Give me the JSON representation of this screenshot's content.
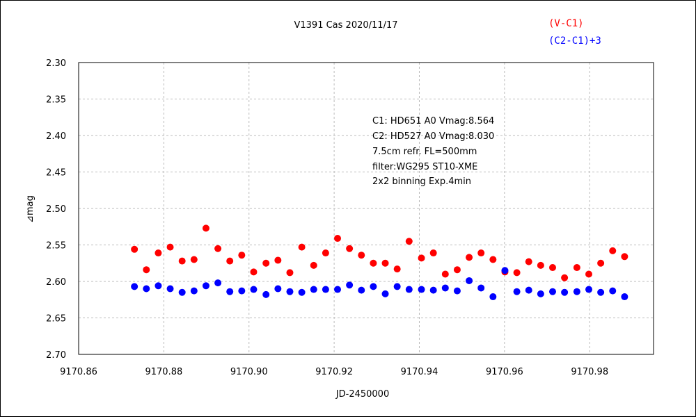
{
  "chart_data": {
    "type": "scatter",
    "title": "V1391 Cas   2020/11/17",
    "xlabel": "JD-2450000",
    "ylabel": "⊿mag",
    "xlim": [
      9170.86,
      9170.995
    ],
    "ylim": [
      2.3,
      2.7
    ],
    "y_inverted": true,
    "x_ticks": [
      "9170.86",
      "9170.88",
      "9170.90",
      "9170.92",
      "9170.94",
      "9170.96",
      "9170.98"
    ],
    "x_tick_values": [
      9170.86,
      9170.88,
      9170.9,
      9170.92,
      9170.94,
      9170.96,
      9170.98
    ],
    "y_ticks": [
      "2.30",
      "2.35",
      "2.40",
      "2.45",
      "2.50",
      "2.55",
      "2.60",
      "2.65",
      "2.70"
    ],
    "y_tick_values": [
      2.3,
      2.35,
      2.4,
      2.45,
      2.5,
      2.55,
      2.6,
      2.65,
      2.7
    ],
    "grid": true,
    "legend_position": "top-right",
    "annotations": [
      "C1: HD651 A0 Vmag:8.564",
      "C2: HD527 A0  Vmag:8.030",
      "7.5cm refr. FL=500mm",
      "filter:WG295  ST10-XME",
      "2x2 binning  Exp.4min"
    ],
    "series": [
      {
        "name": "(V-C1)",
        "color": "#ff0000",
        "x": [
          9170.8731,
          9170.8759,
          9170.8787,
          9170.8815,
          9170.8843,
          9170.8871,
          9170.8899,
          9170.8927,
          9170.8955,
          9170.8983,
          9170.9011,
          9170.904,
          9170.9068,
          9170.9096,
          9170.9124,
          9170.9152,
          9170.918,
          9170.9208,
          9170.9236,
          9170.9264,
          9170.9292,
          9170.932,
          9170.9348,
          9170.9376,
          9170.9405,
          9170.9433,
          9170.9461,
          9170.9489,
          9170.9517,
          9170.9545,
          9170.9573,
          9170.9601,
          9170.9629,
          9170.9657,
          9170.9685,
          9170.9713,
          9170.9741,
          9170.977,
          9170.9798,
          9170.9826,
          9170.9854,
          9170.9882
        ],
        "y": [
          2.556,
          2.584,
          2.561,
          2.553,
          2.572,
          2.57,
          2.527,
          2.555,
          2.572,
          2.564,
          2.587,
          2.575,
          2.571,
          2.588,
          2.553,
          2.578,
          2.561,
          2.541,
          2.555,
          2.564,
          2.575,
          2.575,
          2.583,
          2.545,
          2.568,
          2.561,
          2.59,
          2.584,
          2.567,
          2.561,
          2.57,
          2.587,
          2.588,
          2.573,
          2.578,
          2.581,
          2.595,
          2.581,
          2.59,
          2.575,
          2.558,
          2.566
        ]
      },
      {
        "name": "(C2-C1)+3",
        "color": "#0000ff",
        "x": [
          9170.8731,
          9170.8759,
          9170.8787,
          9170.8815,
          9170.8843,
          9170.8871,
          9170.8899,
          9170.8927,
          9170.8955,
          9170.8983,
          9170.9011,
          9170.904,
          9170.9068,
          9170.9096,
          9170.9124,
          9170.9152,
          9170.918,
          9170.9208,
          9170.9236,
          9170.9264,
          9170.9292,
          9170.932,
          9170.9348,
          9170.9376,
          9170.9405,
          9170.9433,
          9170.9461,
          9170.9489,
          9170.9517,
          9170.9545,
          9170.9573,
          9170.9601,
          9170.9629,
          9170.9657,
          9170.9685,
          9170.9713,
          9170.9741,
          9170.977,
          9170.9798,
          9170.9826,
          9170.9854,
          9170.9882
        ],
        "y": [
          2.607,
          2.61,
          2.606,
          2.61,
          2.615,
          2.613,
          2.606,
          2.602,
          2.614,
          2.613,
          2.611,
          2.618,
          2.61,
          2.614,
          2.615,
          2.611,
          2.611,
          2.611,
          2.605,
          2.612,
          2.607,
          2.617,
          2.607,
          2.611,
          2.611,
          2.612,
          2.609,
          2.613,
          2.599,
          2.609,
          2.621,
          2.585,
          2.614,
          2.612,
          2.617,
          2.614,
          2.615,
          2.614,
          2.611,
          2.615,
          2.613,
          2.621
        ]
      }
    ]
  }
}
